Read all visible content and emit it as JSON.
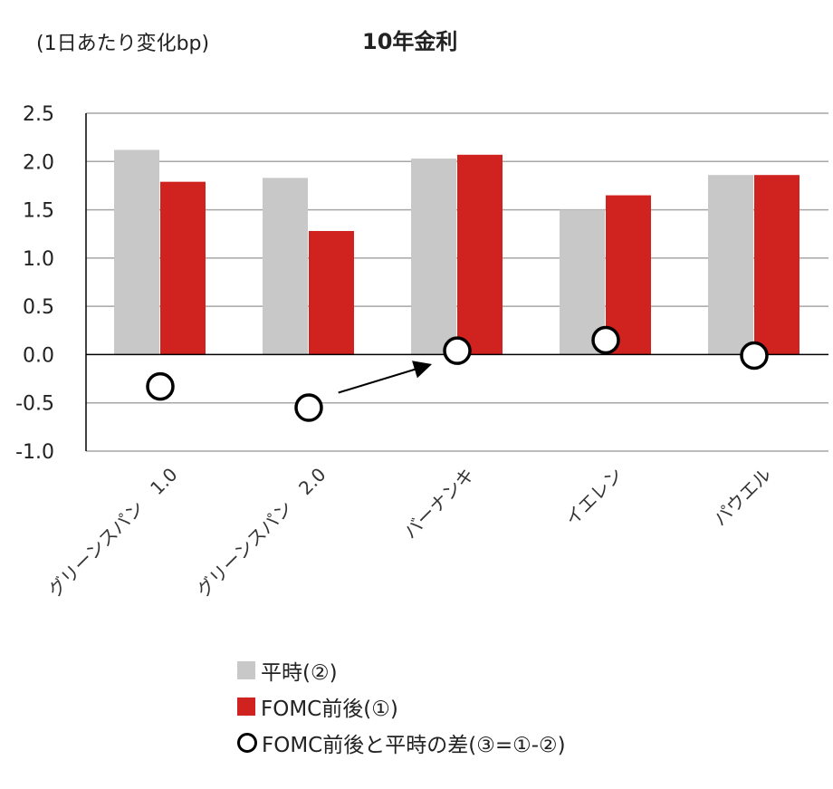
{
  "chart_data": {
    "type": "bar",
    "title": "10年金利",
    "unit_label": "(1日あたり変化bp)",
    "categories": [
      "グリーンスパン　1.0",
      "グリーンスパン　2.0",
      "バーナンキ",
      "イエレン",
      "パウエル"
    ],
    "series": [
      {
        "name": "平時(②)",
        "kind": "bar",
        "color": "#c8c8c8",
        "values": [
          2.12,
          1.83,
          2.03,
          1.5,
          1.86
        ]
      },
      {
        "name": "FOMC前後(①)",
        "kind": "bar",
        "color": "#d0221f",
        "values": [
          1.79,
          1.28,
          2.07,
          1.65,
          1.86
        ]
      },
      {
        "name": "FOMC前後と平時の差(③=①-②)",
        "kind": "scatter",
        "color": "#000000",
        "values": [
          -0.33,
          -0.55,
          0.04,
          0.15,
          -0.01
        ]
      }
    ],
    "ylim": [
      -1.0,
      2.5
    ],
    "yticks": [
      "2.5",
      "2.0",
      "1.5",
      "1.0",
      "0.5",
      "0.0",
      "-0.5",
      "-1.0"
    ],
    "grid": true,
    "legend_position": "bottom",
    "annotation": {
      "type": "arrow",
      "from_category": 1,
      "to_category": 2
    }
  }
}
